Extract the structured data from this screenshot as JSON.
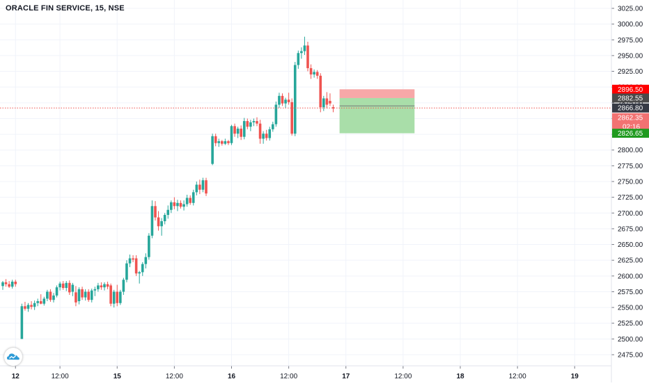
{
  "title": "ORACLE FIN SERVICE, 15, NSE",
  "logo_icon": "tradingview-cloud-logo",
  "colors": {
    "up": "#26a69a",
    "down": "#ef5350",
    "grid": "#f0f3fa",
    "axis": "#787b86",
    "current_price_line": "#ef5350",
    "stop_zone": "#f7a8a8",
    "target_zone": "#a9dea9",
    "stop_tag": "#ff0000",
    "entry_tag": "#4a4a4a",
    "current_tag": "#363a45",
    "price_tag": "#f27272",
    "target_tag": "#1f9a1f"
  },
  "chart_data": {
    "type": "candlestick",
    "ylim": [
      2460,
      3035
    ],
    "y_ticks": [
      "2475.00",
      "2500.00",
      "2525.00",
      "2550.00",
      "2575.00",
      "2600.00",
      "2625.00",
      "2650.00",
      "2675.00",
      "2700.00",
      "2725.00",
      "2750.00",
      "2775.00",
      "2800.00",
      "2825.00",
      "2850.00",
      "2875.00",
      "2900.00",
      "2925.00",
      "2950.00",
      "2975.00",
      "3000.00",
      "3025.00"
    ],
    "x_ticks": [
      {
        "t": 1,
        "label": "12"
      },
      {
        "t": 4.5,
        "label": "12:00"
      },
      {
        "t": 9,
        "label": "15"
      },
      {
        "t": 13.5,
        "label": "12:00"
      },
      {
        "t": 18,
        "label": "16"
      },
      {
        "t": 22.5,
        "label": "12:00"
      },
      {
        "t": 27,
        "label": "17"
      },
      {
        "t": 31.5,
        "label": "12:00"
      },
      {
        "t": 36,
        "label": "18"
      },
      {
        "t": 40.5,
        "label": "12:00"
      },
      {
        "t": 45,
        "label": "19"
      }
    ],
    "candles": [
      {
        "t": 0,
        "o": 2584,
        "h": 2592,
        "l": 2578,
        "c": 2590
      },
      {
        "t": 0.25,
        "o": 2590,
        "h": 2595,
        "l": 2583,
        "c": 2587
      },
      {
        "t": 0.5,
        "o": 2587,
        "h": 2592,
        "l": 2581,
        "c": 2583
      },
      {
        "t": 0.75,
        "o": 2583,
        "h": 2594,
        "l": 2580,
        "c": 2591
      },
      {
        "t": 1.0,
        "o": 2591,
        "h": 2594,
        "l": 2583,
        "c": 2587
      },
      {
        "t": 1.5,
        "o": 2500,
        "h": 2556,
        "l": 2500,
        "c": 2552
      },
      {
        "t": 1.75,
        "o": 2552,
        "h": 2559,
        "l": 2545,
        "c": 2548
      },
      {
        "t": 2.0,
        "o": 2548,
        "h": 2557,
        "l": 2543,
        "c": 2554
      },
      {
        "t": 2.25,
        "o": 2554,
        "h": 2560,
        "l": 2547,
        "c": 2551
      },
      {
        "t": 2.5,
        "o": 2551,
        "h": 2561,
        "l": 2546,
        "c": 2557
      },
      {
        "t": 2.75,
        "o": 2557,
        "h": 2564,
        "l": 2552,
        "c": 2560
      },
      {
        "t": 3.0,
        "o": 2560,
        "h": 2571,
        "l": 2555,
        "c": 2556
      },
      {
        "t": 3.25,
        "o": 2556,
        "h": 2567,
        "l": 2553,
        "c": 2564
      },
      {
        "t": 3.5,
        "o": 2564,
        "h": 2578,
        "l": 2560,
        "c": 2575
      },
      {
        "t": 3.75,
        "o": 2575,
        "h": 2579,
        "l": 2559,
        "c": 2562
      },
      {
        "t": 4.0,
        "o": 2562,
        "h": 2573,
        "l": 2558,
        "c": 2569
      },
      {
        "t": 4.25,
        "o": 2569,
        "h": 2585,
        "l": 2566,
        "c": 2582
      },
      {
        "t": 4.5,
        "o": 2582,
        "h": 2591,
        "l": 2577,
        "c": 2588
      },
      {
        "t": 4.75,
        "o": 2588,
        "h": 2592,
        "l": 2578,
        "c": 2581
      },
      {
        "t": 5.0,
        "o": 2581,
        "h": 2592,
        "l": 2576,
        "c": 2589
      },
      {
        "t": 5.25,
        "o": 2589,
        "h": 2593,
        "l": 2570,
        "c": 2574
      },
      {
        "t": 5.5,
        "o": 2575,
        "h": 2589,
        "l": 2568,
        "c": 2586
      },
      {
        "t": 5.75,
        "o": 2574,
        "h": 2584,
        "l": 2552,
        "c": 2558
      },
      {
        "t": 6.0,
        "o": 2560,
        "h": 2582,
        "l": 2555,
        "c": 2579
      },
      {
        "t": 6.25,
        "o": 2579,
        "h": 2583,
        "l": 2562,
        "c": 2566
      },
      {
        "t": 6.5,
        "o": 2566,
        "h": 2579,
        "l": 2561,
        "c": 2575
      },
      {
        "t": 6.75,
        "o": 2575,
        "h": 2579,
        "l": 2559,
        "c": 2562
      },
      {
        "t": 7.0,
        "o": 2562,
        "h": 2580,
        "l": 2558,
        "c": 2577
      },
      {
        "t": 7.25,
        "o": 2577,
        "h": 2583,
        "l": 2568,
        "c": 2579
      },
      {
        "t": 7.5,
        "o": 2579,
        "h": 2589,
        "l": 2575,
        "c": 2585
      },
      {
        "t": 7.75,
        "o": 2585,
        "h": 2590,
        "l": 2578,
        "c": 2582
      },
      {
        "t": 8.0,
        "o": 2582,
        "h": 2590,
        "l": 2577,
        "c": 2587
      },
      {
        "t": 8.25,
        "o": 2587,
        "h": 2591,
        "l": 2579,
        "c": 2583
      },
      {
        "t": 8.5,
        "o": 2585,
        "h": 2588,
        "l": 2552,
        "c": 2556
      },
      {
        "t": 8.75,
        "o": 2556,
        "h": 2578,
        "l": 2550,
        "c": 2575
      },
      {
        "t": 9.0,
        "o": 2575,
        "h": 2586,
        "l": 2552,
        "c": 2557
      },
      {
        "t": 9.25,
        "o": 2557,
        "h": 2578,
        "l": 2554,
        "c": 2575
      },
      {
        "t": 9.5,
        "o": 2575,
        "h": 2597,
        "l": 2570,
        "c": 2594
      },
      {
        "t": 9.75,
        "o": 2594,
        "h": 2625,
        "l": 2590,
        "c": 2620
      },
      {
        "t": 10.0,
        "o": 2620,
        "h": 2634,
        "l": 2614,
        "c": 2628
      },
      {
        "t": 10.25,
        "o": 2628,
        "h": 2633,
        "l": 2622,
        "c": 2626
      },
      {
        "t": 10.5,
        "o": 2628,
        "h": 2633,
        "l": 2600,
        "c": 2604
      },
      {
        "t": 10.75,
        "o": 2604,
        "h": 2608,
        "l": 2588,
        "c": 2606
      },
      {
        "t": 11.0,
        "o": 2606,
        "h": 2622,
        "l": 2600,
        "c": 2619
      },
      {
        "t": 11.25,
        "o": 2619,
        "h": 2636,
        "l": 2612,
        "c": 2630
      },
      {
        "t": 11.5,
        "o": 2630,
        "h": 2668,
        "l": 2626,
        "c": 2664
      },
      {
        "t": 11.75,
        "o": 2664,
        "h": 2720,
        "l": 2660,
        "c": 2711
      },
      {
        "t": 12.0,
        "o": 2711,
        "h": 2719,
        "l": 2688,
        "c": 2693
      },
      {
        "t": 12.25,
        "o": 2693,
        "h": 2703,
        "l": 2672,
        "c": 2679
      },
      {
        "t": 12.5,
        "o": 2679,
        "h": 2692,
        "l": 2664,
        "c": 2687
      },
      {
        "t": 12.75,
        "o": 2687,
        "h": 2700,
        "l": 2682,
        "c": 2697
      },
      {
        "t": 13.0,
        "o": 2697,
        "h": 2712,
        "l": 2691,
        "c": 2705
      },
      {
        "t": 13.25,
        "o": 2705,
        "h": 2720,
        "l": 2700,
        "c": 2717
      },
      {
        "t": 13.5,
        "o": 2717,
        "h": 2725,
        "l": 2706,
        "c": 2711
      },
      {
        "t": 13.75,
        "o": 2711,
        "h": 2721,
        "l": 2703,
        "c": 2716
      },
      {
        "t": 14.0,
        "o": 2716,
        "h": 2720,
        "l": 2707,
        "c": 2710
      },
      {
        "t": 14.25,
        "o": 2710,
        "h": 2720,
        "l": 2704,
        "c": 2714
      },
      {
        "t": 14.5,
        "o": 2714,
        "h": 2729,
        "l": 2710,
        "c": 2724
      },
      {
        "t": 14.75,
        "o": 2724,
        "h": 2728,
        "l": 2713,
        "c": 2716
      },
      {
        "t": 15.0,
        "o": 2716,
        "h": 2737,
        "l": 2712,
        "c": 2733
      },
      {
        "t": 15.25,
        "o": 2733,
        "h": 2750,
        "l": 2728,
        "c": 2745
      },
      {
        "t": 15.5,
        "o": 2745,
        "h": 2753,
        "l": 2730,
        "c": 2737
      },
      {
        "t": 15.75,
        "o": 2737,
        "h": 2756,
        "l": 2733,
        "c": 2752
      },
      {
        "t": 16.0,
        "o": 2752,
        "h": 2756,
        "l": 2727,
        "c": 2731
      },
      {
        "t": 16.5,
        "o": 2778,
        "h": 2826,
        "l": 2776,
        "c": 2822
      },
      {
        "t": 16.75,
        "o": 2822,
        "h": 2826,
        "l": 2806,
        "c": 2811
      },
      {
        "t": 17.0,
        "o": 2811,
        "h": 2818,
        "l": 2805,
        "c": 2814
      },
      {
        "t": 17.25,
        "o": 2814,
        "h": 2816,
        "l": 2807,
        "c": 2810
      },
      {
        "t": 17.5,
        "o": 2810,
        "h": 2818,
        "l": 2808,
        "c": 2814
      },
      {
        "t": 17.75,
        "o": 2814,
        "h": 2816,
        "l": 2808,
        "c": 2811
      },
      {
        "t": 18.0,
        "o": 2811,
        "h": 2840,
        "l": 2808,
        "c": 2838
      },
      {
        "t": 18.25,
        "o": 2838,
        "h": 2842,
        "l": 2821,
        "c": 2826
      },
      {
        "t": 18.5,
        "o": 2826,
        "h": 2837,
        "l": 2819,
        "c": 2834
      },
      {
        "t": 18.75,
        "o": 2834,
        "h": 2839,
        "l": 2816,
        "c": 2821
      },
      {
        "t": 19.0,
        "o": 2821,
        "h": 2851,
        "l": 2817,
        "c": 2846
      },
      {
        "t": 19.25,
        "o": 2846,
        "h": 2850,
        "l": 2833,
        "c": 2837
      },
      {
        "t": 19.5,
        "o": 2837,
        "h": 2848,
        "l": 2830,
        "c": 2844
      },
      {
        "t": 19.75,
        "o": 2844,
        "h": 2850,
        "l": 2838,
        "c": 2846
      },
      {
        "t": 20.0,
        "o": 2846,
        "h": 2852,
        "l": 2838,
        "c": 2842
      },
      {
        "t": 20.25,
        "o": 2842,
        "h": 2848,
        "l": 2810,
        "c": 2818
      },
      {
        "t": 20.5,
        "o": 2818,
        "h": 2830,
        "l": 2810,
        "c": 2826
      },
      {
        "t": 20.75,
        "o": 2826,
        "h": 2832,
        "l": 2815,
        "c": 2819
      },
      {
        "t": 21.0,
        "o": 2819,
        "h": 2837,
        "l": 2815,
        "c": 2833
      },
      {
        "t": 21.25,
        "o": 2833,
        "h": 2845,
        "l": 2829,
        "c": 2841
      },
      {
        "t": 21.5,
        "o": 2841,
        "h": 2877,
        "l": 2837,
        "c": 2872
      },
      {
        "t": 21.75,
        "o": 2872,
        "h": 2891,
        "l": 2867,
        "c": 2886
      },
      {
        "t": 22.0,
        "o": 2886,
        "h": 2890,
        "l": 2870,
        "c": 2874
      },
      {
        "t": 22.25,
        "o": 2874,
        "h": 2883,
        "l": 2867,
        "c": 2880
      },
      {
        "t": 22.5,
        "o": 2880,
        "h": 2891,
        "l": 2872,
        "c": 2876
      },
      {
        "t": 22.75,
        "o": 2876,
        "h": 2882,
        "l": 2823,
        "c": 2826
      },
      {
        "t": 23.0,
        "o": 2826,
        "h": 2940,
        "l": 2822,
        "c": 2935
      },
      {
        "t": 23.25,
        "o": 2935,
        "h": 2958,
        "l": 2929,
        "c": 2954
      },
      {
        "t": 23.5,
        "o": 2954,
        "h": 2963,
        "l": 2945,
        "c": 2957
      },
      {
        "t": 23.75,
        "o": 2957,
        "h": 2980,
        "l": 2951,
        "c": 2966
      },
      {
        "t": 24.0,
        "o": 2966,
        "h": 2972,
        "l": 2925,
        "c": 2930
      },
      {
        "t": 24.25,
        "o": 2930,
        "h": 2936,
        "l": 2913,
        "c": 2920
      },
      {
        "t": 24.5,
        "o": 2920,
        "h": 2928,
        "l": 2915,
        "c": 2924
      },
      {
        "t": 24.75,
        "o": 2924,
        "h": 2927,
        "l": 2913,
        "c": 2918
      },
      {
        "t": 25.0,
        "o": 2918,
        "h": 2922,
        "l": 2860,
        "c": 2868
      },
      {
        "t": 25.25,
        "o": 2868,
        "h": 2886,
        "l": 2862,
        "c": 2882
      },
      {
        "t": 25.5,
        "o": 2882,
        "h": 2892,
        "l": 2866,
        "c": 2872
      },
      {
        "t": 25.75,
        "o": 2878,
        "h": 2890,
        "l": 2870,
        "c": 2874
      },
      {
        "t": 26.0,
        "o": 2868,
        "h": 2872,
        "l": 2860,
        "c": 2866
      }
    ],
    "current_price": 2866.8,
    "position": {
      "start_t": 26.5,
      "end_t": 32.4,
      "stop": 2896.5,
      "entry": 2882.55,
      "target": 2826.65,
      "stop_label": "2896.50",
      "entry_label": "2882.55",
      "current_label": "2866.80",
      "price_label": "2862.35",
      "countdown_label": "02:16",
      "target_label": "2826.65"
    }
  }
}
